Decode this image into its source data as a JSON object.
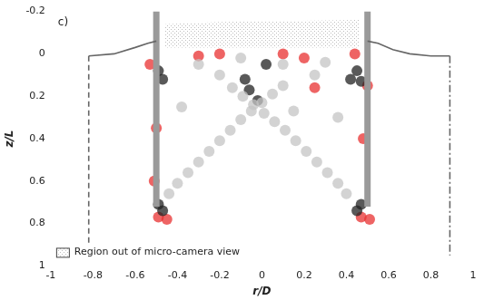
{
  "chart_data": {
    "type": "scatter",
    "title": "c)",
    "xlabel": "r/D",
    "ylabel": "z/L",
    "xlim": [
      -1,
      1
    ],
    "xticks": [
      -1,
      -0.8,
      -0.6,
      -0.4,
      -0.2,
      0,
      0.2,
      0.4,
      0.6,
      0.8,
      1
    ],
    "ylim": [
      1,
      -0.2
    ],
    "yticks": [
      -0.2,
      0,
      0.2,
      0.4,
      0.6,
      0.8,
      1
    ],
    "grid": false,
    "legend": "lower left",
    "series": [
      {
        "type": "region",
        "name": "Region out of micro-camera view",
        "color": "#bdbdbd",
        "marker": "stipple",
        "x": [
          -0.46,
          -0.2,
          0.1,
          0.46,
          0.46,
          -0.46
        ],
        "values": [
          -0.14,
          -0.15,
          -0.155,
          -0.16,
          -0.03,
          -0.03
        ]
      },
      {
        "type": "scatter",
        "color": "#c4c4c4",
        "marker": "circle",
        "x": [
          -0.44,
          -0.4,
          -0.35,
          -0.3,
          -0.25,
          -0.2,
          -0.15,
          -0.1,
          -0.05,
          0.0,
          0.05,
          0.1,
          0.4,
          0.36,
          0.31,
          0.26,
          0.21,
          0.16,
          0.11,
          0.06,
          0.01,
          -0.04,
          -0.09,
          -0.14,
          -0.3,
          -0.2,
          0.1,
          0.25,
          0.3,
          -0.38,
          0.36,
          -0.1,
          0.15
        ],
        "values": [
          0.66,
          0.61,
          0.56,
          0.51,
          0.46,
          0.41,
          0.36,
          0.31,
          0.27,
          0.23,
          0.19,
          0.15,
          0.66,
          0.61,
          0.56,
          0.51,
          0.46,
          0.41,
          0.36,
          0.32,
          0.28,
          0.24,
          0.2,
          0.16,
          0.05,
          0.1,
          0.05,
          0.1,
          0.04,
          0.25,
          0.3,
          0.02,
          0.27
        ]
      },
      {
        "type": "scatter",
        "color": "#222222",
        "marker": "circle",
        "x": [
          -0.49,
          -0.47,
          -0.49,
          -0.47,
          0.45,
          0.42,
          0.47,
          0.45,
          0.47,
          -0.08,
          -0.06,
          -0.02,
          0.02
        ],
        "values": [
          0.08,
          0.12,
          0.71,
          0.74,
          0.08,
          0.12,
          0.71,
          0.74,
          0.13,
          0.12,
          0.17,
          0.22,
          0.05
        ]
      },
      {
        "type": "scatter",
        "color": "#e83030",
        "marker": "circle",
        "x": [
          -0.49,
          -0.45,
          0.47,
          0.51,
          -0.53,
          -0.5,
          -0.51,
          0.5,
          0.48,
          0.2,
          -0.2,
          0.25,
          0.44,
          -0.3,
          0.1
        ],
        "values": [
          0.77,
          0.78,
          0.77,
          0.78,
          0.05,
          0.35,
          0.6,
          0.15,
          0.4,
          0.02,
          0.0,
          0.16,
          0.0,
          0.01,
          0.0
        ]
      },
      {
        "type": "line",
        "color": "#666666",
        "line_style": "solid",
        "x": [
          -0.82,
          -0.7,
          -0.6,
          -0.54,
          -0.5
        ],
        "values": [
          0.01,
          0.0,
          -0.03,
          -0.05,
          -0.06
        ]
      },
      {
        "type": "line",
        "color": "#666666",
        "line_style": "solid",
        "x": [
          0.5,
          0.55,
          0.62,
          0.7,
          0.8,
          0.89
        ],
        "values": [
          -0.06,
          -0.05,
          -0.02,
          0.0,
          0.01,
          0.01
        ]
      },
      {
        "type": "line",
        "color": "#666666",
        "line_style": "dashed",
        "x": [
          -0.82,
          -0.82
        ],
        "values": [
          0.01,
          0.95
        ]
      },
      {
        "type": "line",
        "color": "#666666",
        "line_style": "dashdot",
        "x": [
          0.89,
          0.89
        ],
        "values": [
          0.01,
          0.95
        ]
      },
      {
        "type": "line",
        "color": "#9a9a9a",
        "line_style": "thick",
        "x": [
          -0.5,
          -0.5
        ],
        "values": [
          -0.2,
          0.72
        ]
      },
      {
        "type": "line",
        "color": "#9a9a9a",
        "line_style": "thick",
        "x": [
          0.5,
          0.5
        ],
        "values": [
          -0.2,
          0.72
        ]
      }
    ]
  }
}
